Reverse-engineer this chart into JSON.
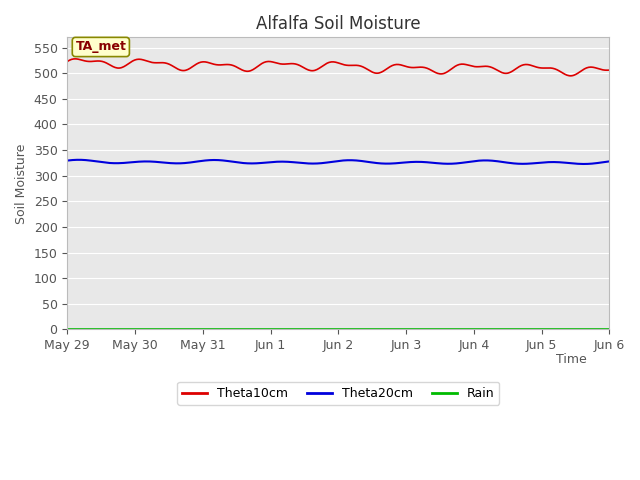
{
  "title": "Alfalfa Soil Moisture",
  "xlabel": "Time",
  "ylabel": "Soil Moisture",
  "plot_bg_color": "#e8e8e8",
  "fig_bg_color": "#ffffff",
  "annotation_text": "TA_met",
  "annotation_bg": "#ffffcc",
  "annotation_border": "#888800",
  "ylim": [
    0,
    570
  ],
  "yticks": [
    0,
    50,
    100,
    150,
    200,
    250,
    300,
    350,
    400,
    450,
    500,
    550
  ],
  "x_tick_labels": [
    "May 29",
    "May 30",
    "May 31",
    "Jun 1",
    "Jun 2",
    "Jun 3",
    "Jun 4",
    "Jun 5",
    "Jun 6"
  ],
  "theta10_color": "#dd0000",
  "theta20_color": "#0000dd",
  "rain_color": "#00bb00",
  "legend_labels": [
    "Theta10cm",
    "Theta20cm",
    "Rain"
  ],
  "title_fontsize": 12,
  "axis_label_fontsize": 9,
  "tick_fontsize": 9
}
